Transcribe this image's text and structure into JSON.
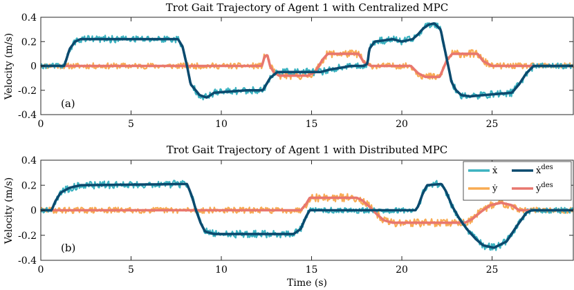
{
  "chart_data": [
    {
      "type": "line",
      "title": "Trot Gait Trajectory of Agent 1 with Centralized MPC",
      "panel_label": "(a)",
      "ylabel": "Velocity (m/s)",
      "xlabel": "",
      "xlim": [
        0,
        29.5
      ],
      "ylim": [
        -0.4,
        0.4
      ],
      "xticks": [
        0,
        5,
        10,
        15,
        20,
        25
      ],
      "yticks": [
        -0.4,
        -0.2,
        0,
        0.2,
        0.4
      ],
      "ytick_labels": [
        "-0.4",
        "-0.2",
        "0",
        "0.2",
        "0.4"
      ],
      "legend": false,
      "series": [
        {
          "name": "x_dot_des",
          "color": "#0b4a6e",
          "x": [
            0,
            1.3,
            1.6,
            1.9,
            2.2,
            7.6,
            7.85,
            8.1,
            8.3,
            8.8,
            9.2,
            9.6,
            11.4,
            12.3,
            12.7,
            13.1,
            15.5,
            16.0,
            17.2,
            17.9,
            18.1,
            18.2,
            18.5,
            19.5,
            20.0,
            20.6,
            20.9,
            21.2,
            21.5,
            21.8,
            22.15,
            22.4,
            22.6,
            22.75,
            23.0,
            23.3,
            23.8,
            24.5,
            26.1,
            26.5,
            26.9,
            27.3,
            29.5
          ],
          "y": [
            0,
            0,
            0.14,
            0.2,
            0.22,
            0.22,
            0.16,
            0.0,
            -0.15,
            -0.24,
            -0.26,
            -0.22,
            -0.2,
            -0.2,
            -0.1,
            -0.05,
            -0.05,
            -0.03,
            0.0,
            0.0,
            0.02,
            0.14,
            0.2,
            0.22,
            0.2,
            0.22,
            0.26,
            0.31,
            0.34,
            0.35,
            0.3,
            0.12,
            -0.02,
            -0.13,
            -0.2,
            -0.24,
            -0.25,
            -0.24,
            -0.22,
            -0.15,
            -0.06,
            0.0,
            0.0
          ]
        },
        {
          "name": "y_dot_des",
          "color": "#e8776e",
          "x": [
            0,
            12.25,
            12.4,
            12.55,
            12.7,
            12.9,
            13.2,
            14.8,
            15.2,
            15.6,
            15.9,
            17.6,
            17.9,
            18.3,
            20.5,
            20.9,
            21.3,
            22.1,
            22.5,
            22.8,
            24.1,
            24.2,
            24.5,
            25.0,
            25.4,
            29.5
          ],
          "y": [
            0,
            0,
            0.08,
            0.09,
            0.0,
            -0.05,
            -0.08,
            -0.08,
            -0.05,
            0.05,
            0.1,
            0.1,
            0.03,
            0.0,
            0.0,
            -0.06,
            -0.09,
            -0.09,
            0.05,
            0.1,
            0.1,
            0.1,
            0.04,
            0.0,
            0.0,
            0.0
          ]
        },
        {
          "name": "x_dot",
          "color": "#3bb2c0"
        },
        {
          "name": "y_dot",
          "color": "#f8ab52"
        }
      ]
    },
    {
      "type": "line",
      "title": "Trot Gait Trajectory of Agent 1 with Distributed MPC",
      "panel_label": "(b)",
      "ylabel": "Velocity (m/s)",
      "xlabel": "Time (s)",
      "xlim": [
        0,
        29.5
      ],
      "ylim": [
        -0.4,
        0.4
      ],
      "xticks": [
        0,
        5,
        10,
        15,
        20,
        25
      ],
      "yticks": [
        -0.4,
        -0.2,
        0,
        0.2,
        0.4
      ],
      "ytick_labels": [
        "-0.4",
        "-0.2",
        "0",
        "0.2",
        "0.4"
      ],
      "legend": true,
      "legend_position": "top-right",
      "series": [
        {
          "name": "x_dot_des",
          "color": "#0b4a6e",
          "x": [
            0,
            0.6,
            0.8,
            1.1,
            1.6,
            2.2,
            8.1,
            8.35,
            8.6,
            8.85,
            9.1,
            9.6,
            14.0,
            14.4,
            14.7,
            14.9,
            20.75,
            20.9,
            21.15,
            21.4,
            22.2,
            22.45,
            22.8,
            23.2,
            23.6,
            24.1,
            24.5,
            25.1,
            25.8,
            26.4,
            26.9,
            27.2,
            29.5
          ],
          "y": [
            0,
            0,
            0.07,
            0.14,
            0.18,
            0.2,
            0.21,
            0.12,
            0.0,
            -0.1,
            -0.17,
            -0.19,
            -0.19,
            -0.15,
            -0.05,
            0.0,
            0.0,
            0.03,
            0.13,
            0.2,
            0.21,
            0.15,
            0.03,
            -0.07,
            -0.15,
            -0.23,
            -0.28,
            -0.3,
            -0.25,
            -0.12,
            -0.02,
            0.0,
            0.0
          ]
        },
        {
          "name": "y_dot_des",
          "color": "#e8776e",
          "x": [
            0,
            14.4,
            14.7,
            14.9,
            17.5,
            17.8,
            18.2,
            18.6,
            19.0,
            19.5,
            23.5,
            23.9,
            24.4,
            24.9,
            25.5,
            26.1,
            26.5,
            26.9,
            29.5
          ],
          "y": [
            0,
            0,
            0.05,
            0.1,
            0.1,
            0.08,
            0.03,
            -0.03,
            -0.08,
            -0.1,
            -0.1,
            -0.07,
            -0.01,
            0.04,
            0.06,
            0.04,
            0.0,
            0.0,
            0.0
          ]
        },
        {
          "name": "x_dot",
          "color": "#3bb2c0"
        },
        {
          "name": "y_dot",
          "color": "#f8ab52"
        }
      ]
    }
  ],
  "legend": {
    "x_dot": "ẋ",
    "x_dot_des_base": "ẋ",
    "x_dot_des_sup": "des",
    "y_dot": "ẏ",
    "y_dot_des_base": "ẏ",
    "y_dot_des_sup": "des"
  }
}
